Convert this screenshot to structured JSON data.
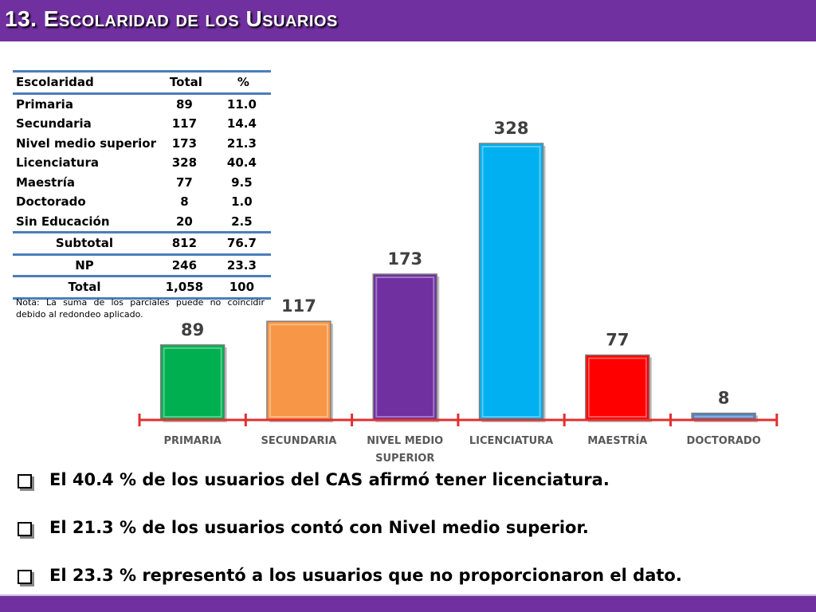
{
  "slide": {
    "title": "13. Escolaridad de los Usuarios",
    "colors": {
      "title_bar": "#7030a0",
      "title_text": "#ffffff",
      "rule": "#4a7ebb",
      "axis": "#e03030"
    }
  },
  "table": {
    "headers": [
      "Escolaridad",
      "Total",
      "%"
    ],
    "rows": [
      [
        "Primaria",
        "89",
        "11.0"
      ],
      [
        "Secundaria",
        "117",
        "14.4"
      ],
      [
        "Nivel medio superior",
        "173",
        "21.3"
      ],
      [
        "Licenciatura",
        "328",
        "40.4"
      ],
      [
        "Maestría",
        "77",
        "9.5"
      ],
      [
        "Doctorado",
        "8",
        "1.0"
      ],
      [
        "Sin Educación",
        "20",
        "2.5"
      ]
    ],
    "summary": [
      [
        "Subtotal",
        "812",
        "76.7"
      ],
      [
        "NP",
        "246",
        "23.3"
      ],
      [
        "Total",
        "1,058",
        "100"
      ]
    ],
    "note": "Nota: La suma de los parciales puede no coincidir debido al redondeo aplicado."
  },
  "chart_data": {
    "type": "bar",
    "categories": [
      [
        "PRIMARIA"
      ],
      [
        "SECUNDARIA"
      ],
      [
        "NIVEL MEDIO",
        "SUPERIOR"
      ],
      [
        "LICENCIATURA"
      ],
      [
        "MAESTRÍA"
      ],
      [
        "DOCTORADO"
      ]
    ],
    "values": [
      89,
      117,
      173,
      328,
      77,
      8
    ],
    "colors": [
      "#00b050",
      "#f79646",
      "#7030a0",
      "#00b0f0",
      "#ff0000",
      "#4f81bd"
    ],
    "data_labels": [
      "89",
      "117",
      "173",
      "328",
      "77",
      "8"
    ],
    "title": "",
    "xlabel": "",
    "ylabel": "",
    "ylim": [
      0,
      328
    ],
    "grid": false,
    "legend": "none"
  },
  "bullets": [
    "El 40.4 % de los usuarios del CAS afirmó tener licenciatura.",
    "El 21.3 % de los usuarios contó con Nivel medio superior.",
    "El 23.3 % representó a los usuarios que no proporcionaron el dato."
  ]
}
